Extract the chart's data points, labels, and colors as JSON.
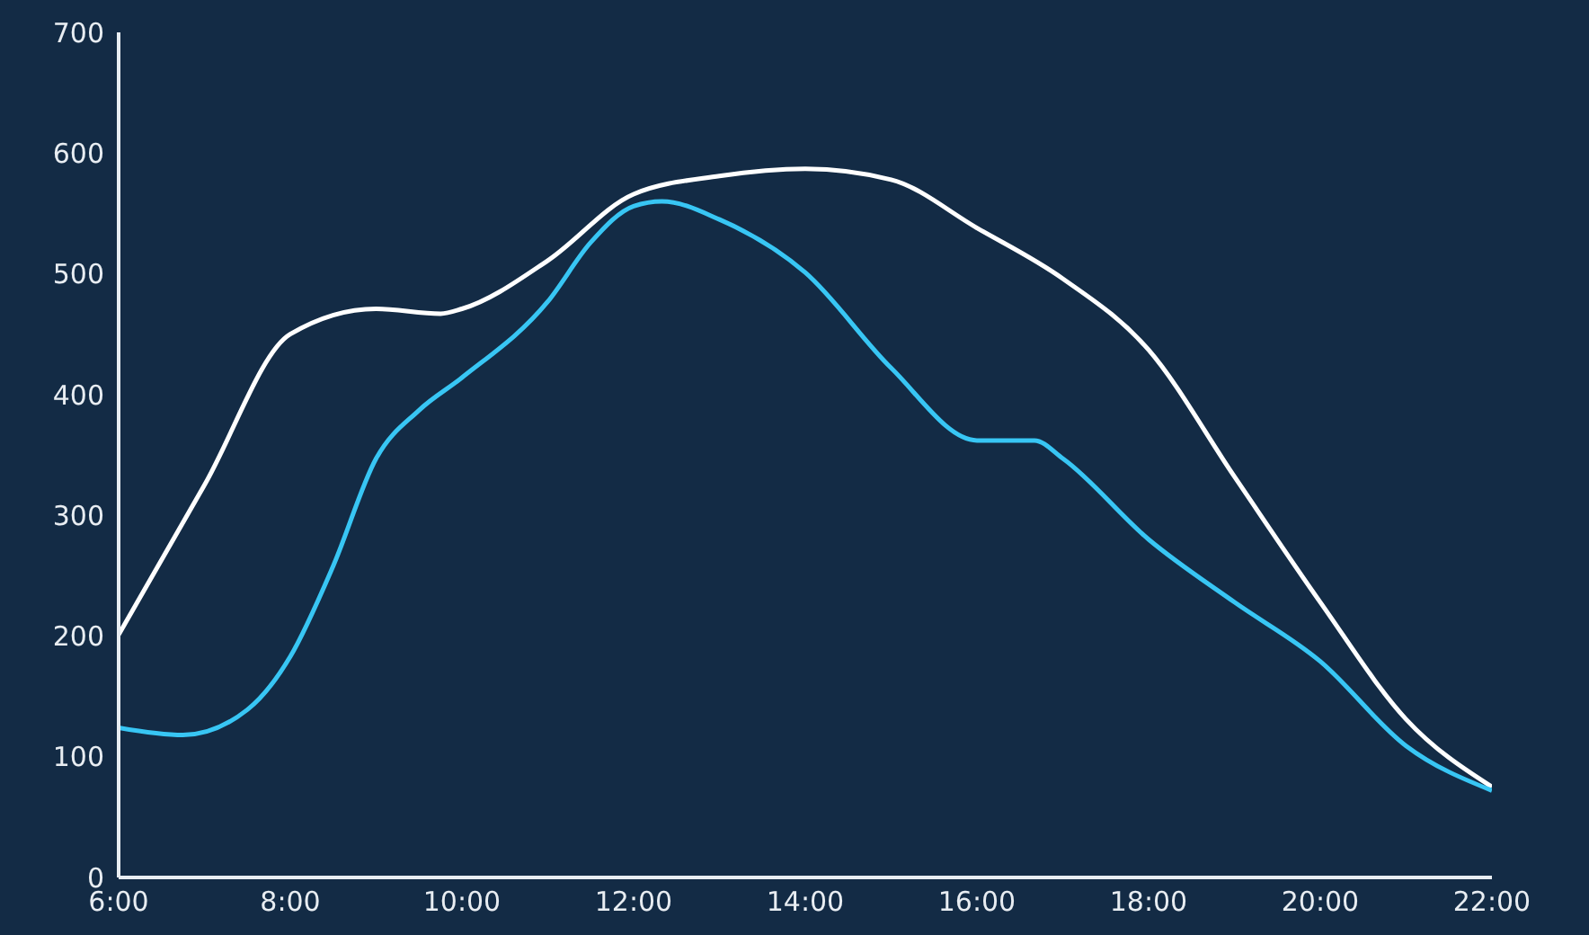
{
  "chart_data": {
    "type": "line",
    "xlim": [
      6,
      22
    ],
    "xticks": [
      {
        "value": 6,
        "label": "6:00"
      },
      {
        "value": 8,
        "label": "8:00"
      },
      {
        "value": 10,
        "label": "10:00"
      },
      {
        "value": 12,
        "label": "12:00"
      },
      {
        "value": 14,
        "label": "14:00"
      },
      {
        "value": 16,
        "label": "16:00"
      },
      {
        "value": 18,
        "label": "18:00"
      },
      {
        "value": 20,
        "label": "20:00"
      },
      {
        "value": 22,
        "label": "22:00"
      }
    ],
    "ylim": [
      0,
      700
    ],
    "yticks": [
      0,
      100,
      200,
      300,
      400,
      500,
      600,
      700
    ],
    "grid": false,
    "legend": false,
    "marker": "none",
    "line_style": "solid",
    "series": [
      {
        "color": "#ffffff",
        "x": [
          6,
          7,
          8,
          9,
          9.75,
          10,
          11,
          12,
          13,
          14,
          15,
          16,
          17,
          18,
          19,
          20,
          21,
          22
        ],
        "values": [
          201,
          325,
          450,
          471,
          467,
          471,
          511,
          566,
          581,
          587,
          578,
          538,
          496,
          437,
          332,
          228,
          131,
          75
        ]
      },
      {
        "color": "#38c6f4",
        "x": [
          6,
          6.75,
          7.5,
          8,
          8.5,
          9,
          9.5,
          10,
          11,
          11.5,
          12,
          12.33,
          13,
          14,
          15,
          16,
          16.67,
          17,
          18,
          19,
          20,
          21,
          22
        ],
        "values": [
          124,
          118,
          139,
          183,
          258,
          347,
          387,
          414,
          477,
          526,
          556,
          560,
          545,
          501,
          422,
          362,
          362,
          347,
          280,
          228,
          179,
          109,
          72
        ]
      }
    ]
  }
}
